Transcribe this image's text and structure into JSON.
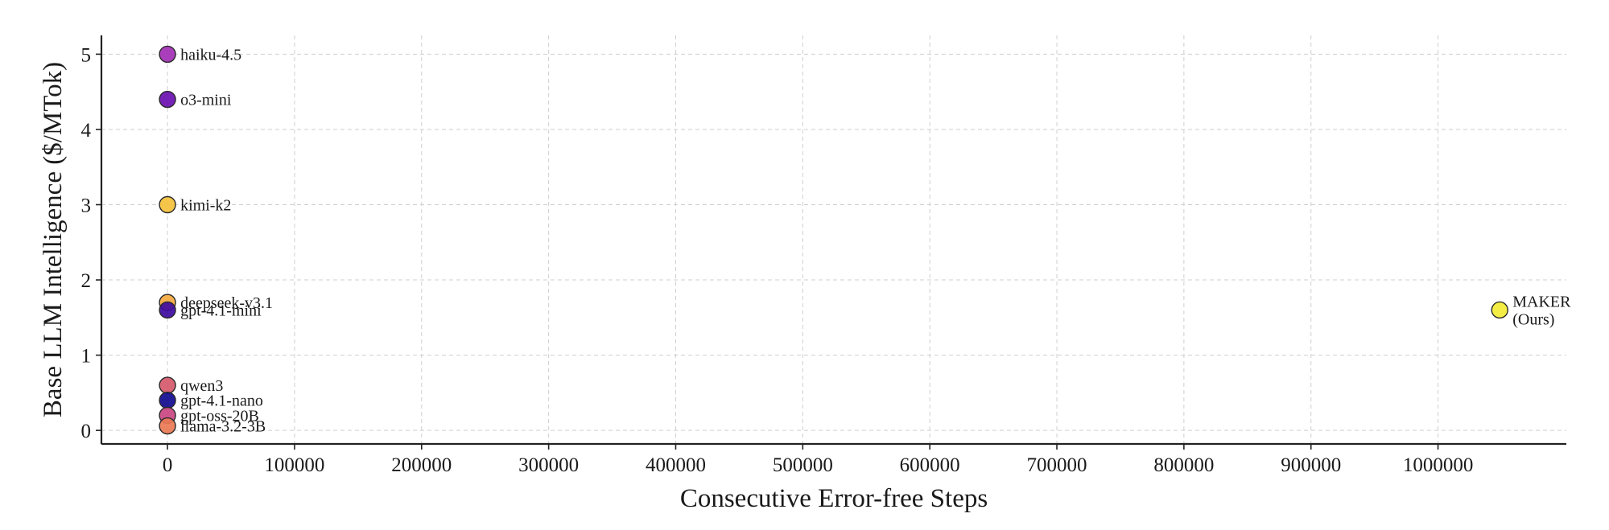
{
  "chart_data": {
    "type": "scatter",
    "title": "",
    "xlabel": "Consecutive Error-free Steps",
    "ylabel": "Base LLM Intelligence ($/MTok)",
    "xlim": [
      -52000,
      1101000
    ],
    "ylim": [
      -0.18,
      5.25
    ],
    "x_ticks": [
      0,
      100000,
      200000,
      300000,
      400000,
      500000,
      600000,
      700000,
      800000,
      900000,
      1000000
    ],
    "y_ticks": [
      0,
      1,
      2,
      3,
      4,
      5
    ],
    "grid": true,
    "legend": "none",
    "points": [
      {
        "label": [
          "haiku-4.5"
        ],
        "x": 0,
        "y": 5.0,
        "color": "#a32fb5"
      },
      {
        "label": [
          "o3-mini"
        ],
        "x": 0,
        "y": 4.4,
        "color": "#6a0fb0"
      },
      {
        "label": [
          "kimi-k2"
        ],
        "x": 0,
        "y": 3.0,
        "color": "#f5c13c"
      },
      {
        "label": [
          "deepseek-v3.1"
        ],
        "x": 0,
        "y": 1.7,
        "color": "#f4a93f"
      },
      {
        "label": [
          "gpt-4.1-mini"
        ],
        "x": 0,
        "y": 1.6,
        "color": "#3d0a9e"
      },
      {
        "label": [
          "qwen3"
        ],
        "x": 0,
        "y": 0.6,
        "color": "#d5596a"
      },
      {
        "label": [
          "gpt-4.1-nano"
        ],
        "x": 0,
        "y": 0.4,
        "color": "#100a8e"
      },
      {
        "label": [
          "gpt-oss-20B"
        ],
        "x": 0,
        "y": 0.2,
        "color": "#c94682"
      },
      {
        "label": [
          "llama-3.2-3B"
        ],
        "x": 0,
        "y": 0.06,
        "color": "#ea7a55"
      },
      {
        "label": [
          "MAKER",
          "(Ours)"
        ],
        "x": 1048575,
        "y": 1.6,
        "color": "#f2ec36"
      }
    ]
  }
}
